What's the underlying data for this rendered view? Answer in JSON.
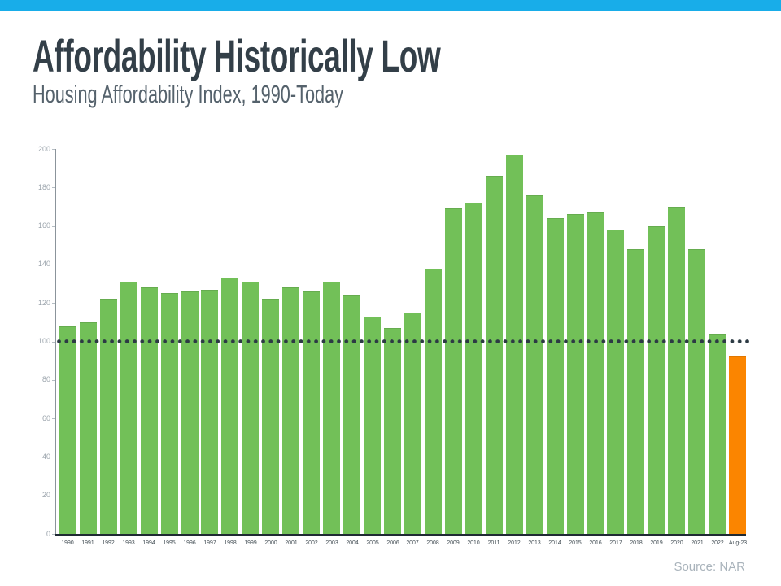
{
  "header": {
    "title": "Affordability Historically Low",
    "subtitle": "Housing Affordability Index, 1990-Today"
  },
  "footer": {
    "source": "Source: NAR"
  },
  "colors": {
    "accent_bar": "#18ade9",
    "bar_green": "#72c058",
    "bar_orange": "#fb8500",
    "benchmark_dots": "#2c3a44",
    "title_text": "#333f48",
    "subtitle_text": "#55626c",
    "y_axis_labels": "#9aa3ab",
    "x_axis_labels": "#3e4950",
    "source_text": "#a9b3bb"
  },
  "chart_data": {
    "type": "bar",
    "title": "Affordability Historically Low",
    "subtitle": "Housing Affordability Index, 1990-Today",
    "xlabel": "",
    "ylabel": "",
    "ylim": [
      0,
      200
    ],
    "ytick_interval": 20,
    "grid": false,
    "legend": false,
    "categories": [
      "1990",
      "1991",
      "1992",
      "1993",
      "1994",
      "1995",
      "1996",
      "1997",
      "1998",
      "1999",
      "2000",
      "2001",
      "2002",
      "2003",
      "2004",
      "2005",
      "2006",
      "2007",
      "2008",
      "2009",
      "2010",
      "2011",
      "2012",
      "2013",
      "2014",
      "2015",
      "2016",
      "2017",
      "2018",
      "2019",
      "2020",
      "2021",
      "2022",
      "Aug-23"
    ],
    "values": [
      108,
      110,
      122,
      131,
      128,
      125,
      126,
      127,
      133,
      131,
      122,
      128,
      126,
      131,
      124,
      113,
      107,
      115,
      138,
      169,
      172,
      186,
      197,
      176,
      164,
      166,
      167,
      158,
      148,
      160,
      170,
      148,
      104,
      92
    ],
    "highlight_category": "Aug-23",
    "benchmark_line": {
      "value": 100,
      "style": "dotted"
    }
  }
}
